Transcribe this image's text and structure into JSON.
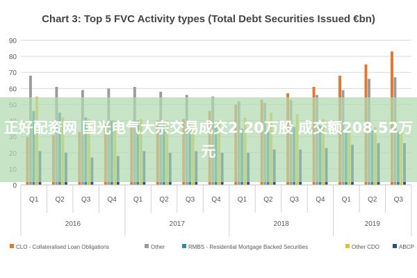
{
  "chart_data": {
    "type": "bar",
    "title": "Chart 3: Top 5 FVC Activity types (Total Debt Securities Issued €bn)",
    "xlabel": "",
    "ylabel": "",
    "ylim": [
      0,
      90
    ],
    "yticks": [
      0,
      10,
      20,
      30,
      40,
      50,
      60,
      70,
      80,
      90
    ],
    "grid": true,
    "legend_position": "bottom",
    "categories": [
      "Q1",
      "Q2",
      "Q3",
      "Q4",
      "Q1",
      "Q2",
      "Q3",
      "Q4",
      "Q1",
      "Q2",
      "Q3",
      "Q4",
      "Q1",
      "Q2",
      "Q3"
    ],
    "groups": [
      {
        "label": "2016",
        "count": 4
      },
      {
        "label": "2017",
        "count": 4
      },
      {
        "label": "2018",
        "count": 4
      },
      {
        "label": "2019",
        "count": 3
      }
    ],
    "series": [
      {
        "name": "CLO - Collateralised Loan Obligations",
        "color": "#E8752B",
        "values": [
          30,
          31,
          33,
          38,
          39,
          40,
          41,
          46,
          50,
          53,
          57,
          61,
          68,
          75,
          83
        ]
      },
      {
        "name": "Other",
        "color": "#9B9B9B",
        "values": [
          68,
          61,
          59,
          60,
          61,
          58,
          56,
          55,
          52,
          51,
          53,
          56,
          59,
          66,
          67
        ]
      },
      {
        "name": "RMBS - Residential Mortgage Backed Securities",
        "color": "#2E8E9E",
        "values": [
          46,
          45,
          42,
          40,
          40,
          39,
          38,
          36,
          35,
          34,
          36,
          37,
          35,
          34,
          33
        ]
      },
      {
        "name": "Other CDO",
        "color": "#E6C229",
        "values": [
          55,
          42,
          41,
          40,
          41,
          40,
          38,
          40,
          42,
          45,
          44,
          41,
          38,
          36,
          34
        ]
      },
      {
        "name": "ABCP",
        "color": "#2C4F8C",
        "values": [
          21,
          20,
          17,
          18,
          21,
          20,
          21,
          20,
          20,
          22,
          22,
          23,
          25,
          26,
          26
        ]
      }
    ]
  },
  "banner": {
    "text": "正好配资网 国光电气大宗交易成交2.20万股 成交额208.52万元"
  }
}
